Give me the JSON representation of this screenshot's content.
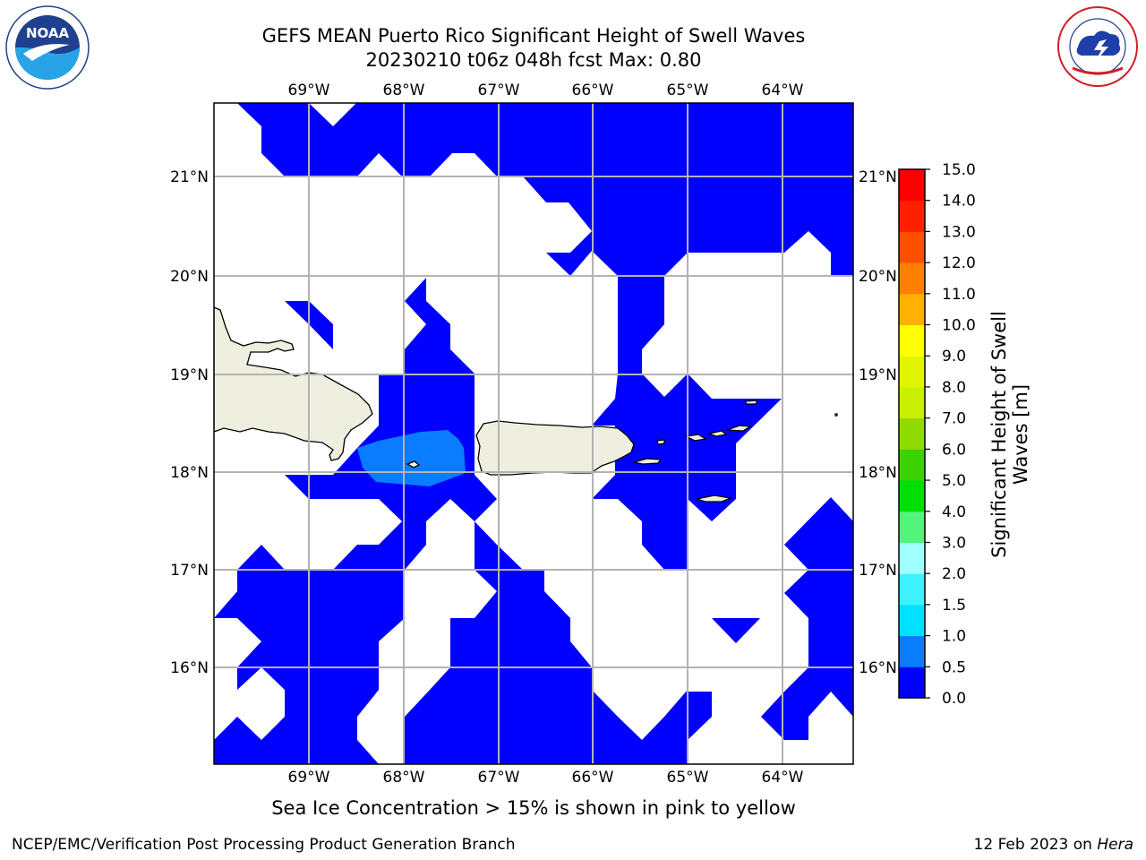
{
  "header": {
    "title_line1": "GEFS MEAN Puerto Rico Significant Height of Swell Waves",
    "title_line2": "20230210 t06z 048h fcst   Max: 0.80"
  },
  "logos": {
    "left": {
      "icon": "noaa-logo-icon",
      "text": "NOAA"
    },
    "right": {
      "icon": "nws-logo-icon"
    }
  },
  "map": {
    "lon_labels": [
      "69°W",
      "68°W",
      "67°W",
      "66°W",
      "65°W",
      "64°W"
    ],
    "lat_labels": [
      "21°N",
      "20°N",
      "19°N",
      "18°N",
      "17°N",
      "16°N"
    ],
    "colors": {
      "swell_0_0_5": "#0000ff",
      "swell_0_5_1": "#0a7cff",
      "land": "#efefdf",
      "grid": "#b3b3b3"
    }
  },
  "colorbar": {
    "ticks": [
      "0.0",
      "0.5",
      "1.0",
      "1.5",
      "2.0",
      "3.0",
      "4.0",
      "5.0",
      "6.0",
      "7.0",
      "8.0",
      "9.0",
      "10.0",
      "11.0",
      "12.0",
      "13.0",
      "14.0",
      "15.0"
    ],
    "colors": [
      "#0000ff",
      "#0a7cff",
      "#00e0ff",
      "#3cf2ff",
      "#6effff",
      "#a0ffff",
      "#50f57a",
      "#00e000",
      "#3cd200",
      "#90dc00",
      "#c8f000",
      "#e2f500",
      "#ffff00",
      "#ffd500",
      "#ffb000",
      "#ff8000",
      "#ff5000",
      "#ff2000",
      "#ff0000"
    ],
    "label": "Significant Height of Swell Waves [m]"
  },
  "footer": {
    "caption": "Sea Ice Concentration > 15% is shown in pink to yellow",
    "credit": "NCEP/EMC/Verification Post Processing Product Generation Branch",
    "date": "12 Feb 2023 on",
    "machine": "Hera"
  }
}
